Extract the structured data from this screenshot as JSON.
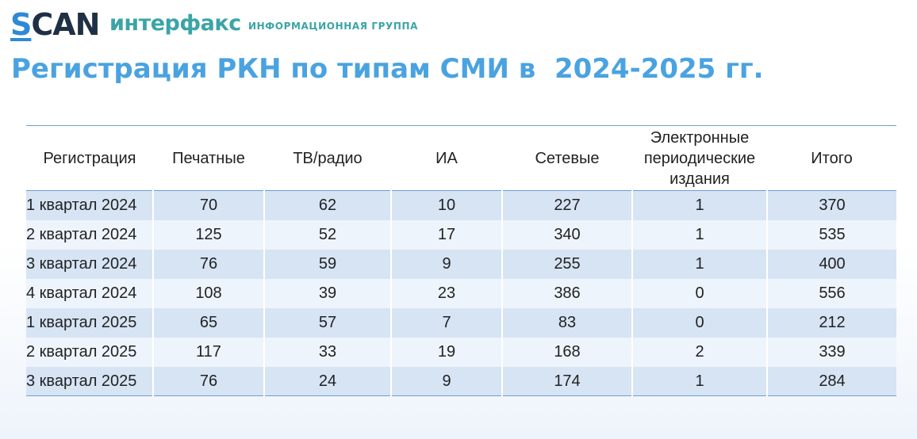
{
  "header": {
    "logo_scan_first": "S",
    "logo_scan_rest": "CAN",
    "logo_interfax": "интерфакс",
    "logo_subtitle": "ИНФОРМАЦИОННАЯ ГРУППА",
    "title": "Регистрация РКН по типам СМИ в  2024-2025 гг."
  },
  "colors": {
    "title": "#4aa3e0",
    "interfax": "#3ba4a6",
    "scan_dark": "#1f2f45",
    "scan_accent": "#2f89d6",
    "row_dark": "#d6e4f4",
    "row_light": "#eef4fb",
    "rule": "#6a9fd4"
  },
  "table": {
    "columns": [
      "Регистрация",
      "Печатные",
      "ТВ/радио",
      "ИА",
      "Сетевые",
      "Электронные периодические издания",
      "Итого"
    ],
    "rows": [
      [
        "1 квартал 2024",
        "70",
        "62",
        "10",
        "227",
        "1",
        "370"
      ],
      [
        "2 квартал 2024",
        "125",
        "52",
        "17",
        "340",
        "1",
        "535"
      ],
      [
        "3 квартал 2024",
        "76",
        "59",
        "9",
        "255",
        "1",
        "400"
      ],
      [
        "4 квартал 2024",
        "108",
        "39",
        "23",
        "386",
        "0",
        "556"
      ],
      [
        "1 квартал 2025",
        "65",
        "57",
        "7",
        "83",
        "0",
        "212"
      ],
      [
        "2 квартал 2025",
        "117",
        "33",
        "19",
        "168",
        "2",
        "339"
      ],
      [
        "3 квартал 2025",
        "76",
        "24",
        "9",
        "174",
        "1",
        "284"
      ]
    ]
  }
}
